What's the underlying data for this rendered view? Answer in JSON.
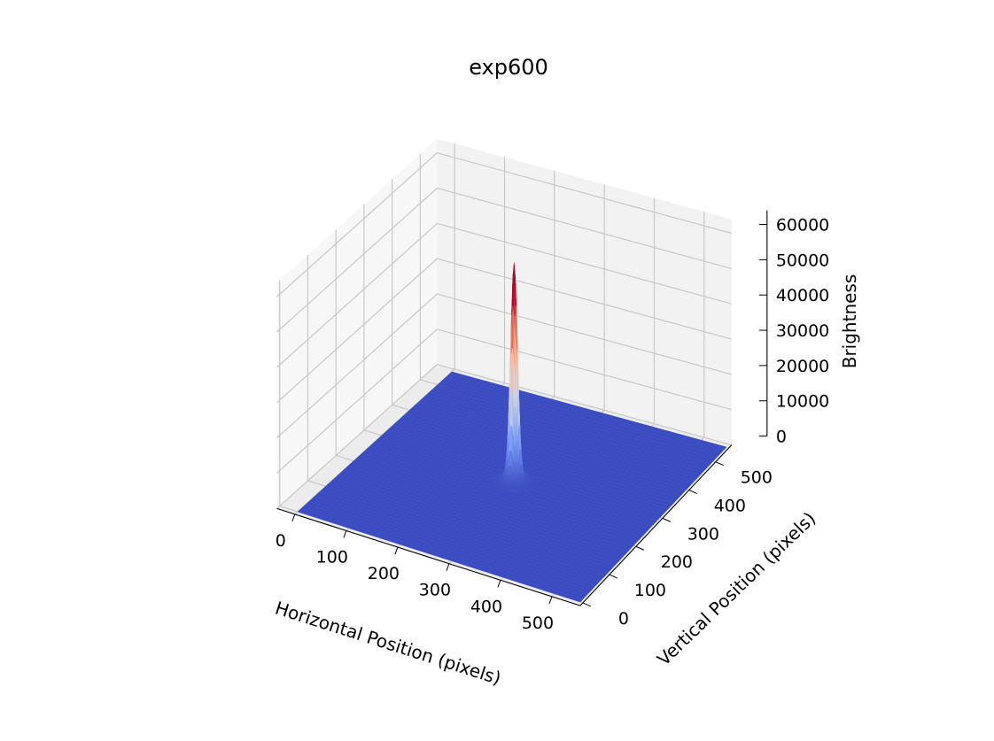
{
  "chart_data": {
    "type": "surface3d",
    "title": "exp600",
    "xlabel": "Horizontal Position (pixels)",
    "ylabel": "Vertical Position (pixels)",
    "zlabel": "Brightness",
    "xlim": [
      0,
      550
    ],
    "ylim": [
      0,
      550
    ],
    "zlim": [
      0,
      64000
    ],
    "x_ticks": [
      0,
      100,
      200,
      300,
      400,
      500
    ],
    "y_ticks": [
      0,
      100,
      200,
      300,
      400,
      500
    ],
    "z_ticks": [
      0,
      10000,
      20000,
      30000,
      40000,
      50000,
      60000
    ],
    "z_tick_labels": [
      "0",
      "10000",
      "20000",
      "30000",
      "40000",
      "50000",
      "60000"
    ],
    "colormap": "coolwarm",
    "grid": true,
    "peak": {
      "x": 275,
      "y": 275,
      "z": 60000
    }
  }
}
